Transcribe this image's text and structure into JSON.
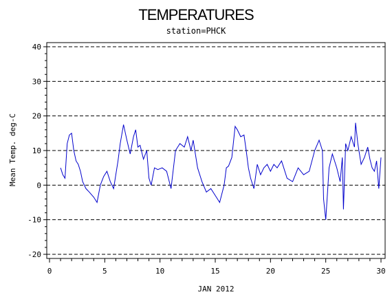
{
  "chart_data": {
    "type": "line",
    "title": "TEMPERATURES",
    "subtitle": "station=PHCK",
    "xlabel": "JAN 2012",
    "ylabel": "Mean Temp. deg-C",
    "xlim": [
      0,
      30
    ],
    "ylim": [
      -20,
      40
    ],
    "x_ticks": [
      0,
      5,
      10,
      15,
      20,
      25,
      30
    ],
    "y_ticks": [
      -20,
      -10,
      0,
      10,
      20,
      30,
      40
    ],
    "grid": "horizontal dashed",
    "series": [
      {
        "color": "#0000cc",
        "x": [
          1.0,
          1.2,
          1.4,
          1.6,
          1.8,
          2.0,
          2.2,
          2.4,
          2.6,
          2.8,
          3.0,
          3.3,
          3.6,
          4.0,
          4.3,
          4.6,
          4.9,
          5.2,
          5.5,
          5.8,
          6.0,
          6.2,
          6.4,
          6.7,
          7.0,
          7.3,
          7.6,
          7.8,
          8.0,
          8.2,
          8.5,
          8.8,
          9.0,
          9.2,
          9.5,
          9.8,
          10.2,
          10.6,
          11.0,
          11.4,
          11.8,
          12.2,
          12.5,
          12.8,
          13.0,
          13.4,
          13.8,
          14.2,
          14.6,
          15.0,
          15.4,
          15.8,
          16.0,
          16.2,
          16.5,
          16.8,
          17.0,
          17.3,
          17.6,
          17.8,
          18.0,
          18.2,
          18.5,
          18.8,
          19.1,
          19.4,
          19.7,
          20.0,
          20.3,
          20.6,
          21.0,
          21.5,
          22.0,
          22.5,
          23.0,
          23.5,
          24.0,
          24.4,
          24.7,
          24.8,
          25.0,
          25.3,
          25.6,
          26.0,
          26.3,
          26.5,
          26.6,
          26.8,
          27.0,
          27.3,
          27.6,
          27.7,
          27.9,
          28.2,
          28.5,
          28.8,
          29.0,
          29.2,
          29.4,
          29.6,
          29.8,
          30.0
        ],
        "values": [
          5.0,
          3.0,
          2.0,
          12.0,
          14.5,
          15.0,
          10.0,
          7.0,
          6.0,
          4.0,
          1.0,
          -1.0,
          -2.0,
          -3.5,
          -5.0,
          0.0,
          2.5,
          4.0,
          1.0,
          -1.0,
          3.0,
          7.0,
          12.0,
          17.5,
          13.0,
          9.0,
          14.0,
          16.0,
          11.0,
          11.5,
          7.5,
          10.0,
          2.0,
          0.0,
          5.0,
          4.5,
          5.0,
          4.0,
          -1.0,
          10.0,
          12.0,
          11.0,
          14.0,
          10.0,
          13.0,
          5.0,
          1.0,
          -2.0,
          -1.0,
          -3.0,
          -5.0,
          0.0,
          5.0,
          5.5,
          8.0,
          17.0,
          16.0,
          14.0,
          14.5,
          10.0,
          5.0,
          2.0,
          -1.0,
          6.0,
          3.0,
          5.0,
          6.0,
          4.0,
          6.0,
          5.0,
          7.0,
          2.0,
          1.0,
          5.0,
          3.0,
          4.0,
          10.0,
          13.0,
          10.0,
          -4.0,
          -10.0,
          5.0,
          9.0,
          5.0,
          1.0,
          8.0,
          -7.0,
          12.0,
          10.0,
          14.0,
          11.0,
          18.0,
          12.0,
          6.0,
          8.0,
          11.0,
          7.5,
          5.0,
          4.0,
          7.0,
          -1.0,
          8.0
        ]
      }
    ]
  }
}
